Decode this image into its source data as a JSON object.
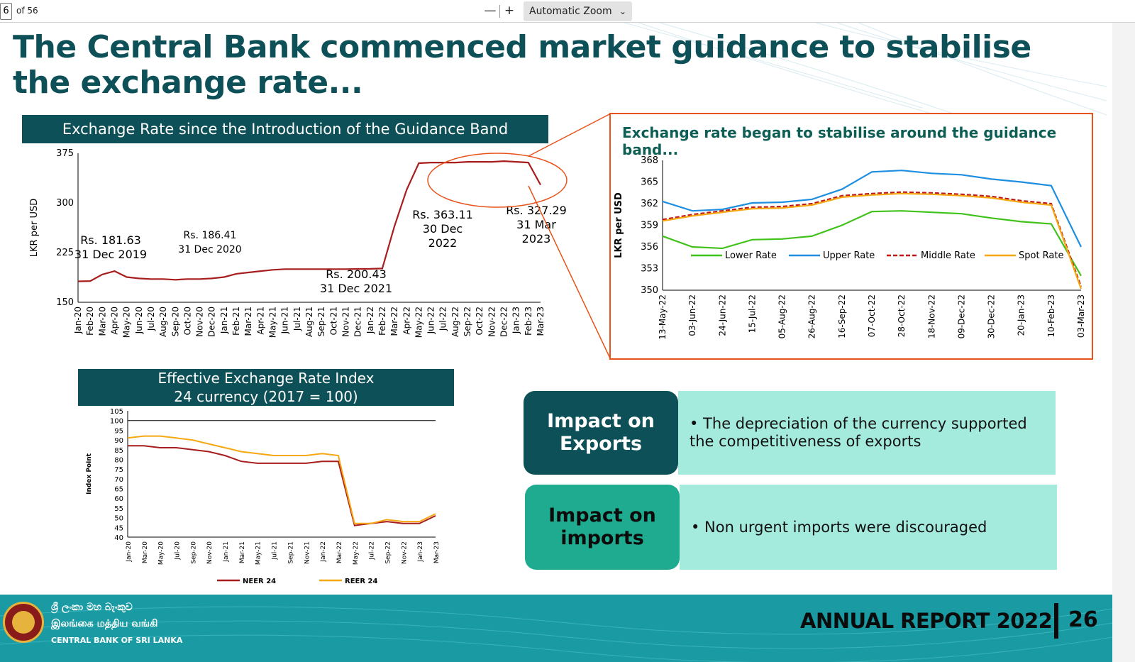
{
  "toolbar": {
    "page_number": "6",
    "page_count": "of 56",
    "zoom_out": "—",
    "zoom_in": "+",
    "zoom_value": "Automatic Zoom"
  },
  "slide": {
    "title": "The Central Bank commenced market guidance to stabilise the exchange rate...",
    "chart1_header": "Exchange Rate since the Introduction of the Guidance Band",
    "chart2_header": "Exchange rate began to stabilise around the guidance band...",
    "chart3_header_line1": "Effective Exchange Rate Index",
    "chart3_header_line2": "24 currency (2017 = 100)",
    "impact_exports_label": "Impact on Exports",
    "impact_exports_text": "• The depreciation of the currency supported the competitiveness of exports",
    "impact_imports_label": "Impact on imports",
    "impact_imports_text": "• Non urgent imports were discouraged",
    "footer_sinhala": "ශ්‍රී ලංකා මහ බැංකුව",
    "footer_tamil": "இலங்கை மத்திய வங்கி",
    "footer_english": "CENTRAL BANK OF SRI LANKA",
    "annual_report": "ANNUAL REPORT 2022",
    "slide_number": "26",
    "accent_color": "#0d5057",
    "teal_color": "#1a9aa3"
  },
  "chart_data": [
    {
      "type": "line",
      "ylabel": "LKR per USD",
      "ylim": [
        150,
        375
      ],
      "yticks": [
        150,
        225,
        300,
        375
      ],
      "categories": [
        "Jan-20",
        "Feb-20",
        "Mar-20",
        "Apr-20",
        "May-20",
        "Jun-20",
        "Jul-20",
        "Aug-20",
        "Sep-20",
        "Oct-20",
        "Nov-20",
        "Dec-20",
        "Jan-21",
        "Feb-21",
        "Mar-21",
        "Apr-21",
        "May-21",
        "Jun-21",
        "Jul-21",
        "Aug-21",
        "Sep-21",
        "Oct-21",
        "Nov-21",
        "Dec-21",
        "Jan-22",
        "Feb-22",
        "Mar-22",
        "Apr-22",
        "May-22",
        "Jun-22",
        "Jul-22",
        "Aug-22",
        "Sep-22",
        "Oct-22",
        "Nov-22",
        "Dec-22",
        "Jan-23",
        "Feb-23",
        "Mar-23"
      ],
      "series": [
        {
          "color": "#a81d1d",
          "values": [
            181.6,
            182,
            192,
            197,
            188,
            186,
            185,
            185,
            184,
            185,
            185,
            186,
            188,
            193,
            195,
            197,
            199,
            200,
            200,
            200,
            200,
            200,
            200,
            200.4,
            200.5,
            201,
            265,
            320,
            360,
            361,
            361,
            361,
            362,
            362,
            362,
            363.1,
            362,
            361,
            327.3
          ]
        }
      ],
      "annotations": [
        {
          "text": "Rs. 181.63",
          "line2": "31 Dec 2019"
        },
        {
          "text": "Rs. 186.41",
          "line2": "31 Dec 2020"
        },
        {
          "text": "Rs. 200.43",
          "line2": "31 Dec 2021"
        },
        {
          "text": "Rs. 363.11",
          "line2": "30 Dec",
          "line3": "2022"
        },
        {
          "text": "Rs. 327.29",
          "line2": "31 Mar",
          "line3": "2023"
        }
      ]
    },
    {
      "type": "line",
      "ylabel": "LKR per USD",
      "ylim": [
        350,
        368
      ],
      "yticks": [
        350,
        353,
        356,
        359,
        362,
        365,
        368
      ],
      "categories": [
        "13-May-22",
        "03-Jun-22",
        "24-Jun-22",
        "15-Jul-22",
        "05-Aug-22",
        "26-Aug-22",
        "16-Sep-22",
        "07-Oct-22",
        "28-Oct-22",
        "18-Nov-22",
        "09-Dec-22",
        "30-Dec-22",
        "20-Jan-23",
        "10-Feb-23",
        "03-Mar-23"
      ],
      "series": [
        {
          "name": "Lower Rate",
          "color": "#41c21b",
          "values": [
            357.5,
            356,
            355.8,
            357,
            357.1,
            357.5,
            359,
            360.9,
            361,
            360.8,
            360.6,
            360,
            359.5,
            359.2,
            352
          ]
        },
        {
          "name": "Upper Rate",
          "color": "#1e8fe0",
          "values": [
            362.3,
            361,
            361.2,
            362.1,
            362.2,
            362.6,
            364,
            366.4,
            366.6,
            366.2,
            366,
            365.4,
            365,
            364.5,
            356
          ]
        },
        {
          "name": "Middle Rate",
          "color": "#c01818",
          "values": [
            359.8,
            360.5,
            361,
            361.5,
            361.6,
            362,
            363.1,
            363.4,
            363.6,
            363.5,
            363.3,
            363,
            362.4,
            362,
            350.5
          ]
        },
        {
          "name": "Spot Rate",
          "color": "#f5a812",
          "values": [
            359.6,
            360.3,
            360.8,
            361.3,
            361.4,
            361.8,
            362.9,
            363.2,
            363.4,
            363.3,
            363.1,
            362.8,
            362.2,
            361.8,
            350.2
          ]
        }
      ]
    },
    {
      "type": "line",
      "ylabel": "Index Point",
      "ylim": [
        40,
        105
      ],
      "yticks": [
        40,
        45,
        50,
        55,
        60,
        65,
        70,
        75,
        80,
        85,
        90,
        95,
        100,
        105
      ],
      "categories": [
        "Jan-20",
        "Mar-20",
        "May-20",
        "Jul-20",
        "Sep-20",
        "Nov-20",
        "Jan-21",
        "Mar-21",
        "May-21",
        "Jul-21",
        "Sep-21",
        "Nov-21",
        "Jan-22",
        "Mar-22",
        "May-22",
        "Jul-22",
        "Sep-22",
        "Nov-22",
        "Jan-23",
        "Mar-23"
      ],
      "series": [
        {
          "name": "NEER 24",
          "color": "#a81d1d",
          "values": [
            87,
            87,
            86,
            86,
            85,
            84,
            82,
            79,
            78,
            78,
            78,
            78,
            79,
            79,
            46,
            47,
            48,
            47,
            47,
            51
          ]
        },
        {
          "name": "REER 24",
          "color": "#f5a812",
          "values": [
            91,
            92,
            92,
            91,
            90,
            88,
            86,
            84,
            83,
            82,
            82,
            82,
            83,
            82,
            47,
            47,
            49,
            48,
            48,
            52
          ]
        }
      ],
      "reference_line": 100
    }
  ]
}
